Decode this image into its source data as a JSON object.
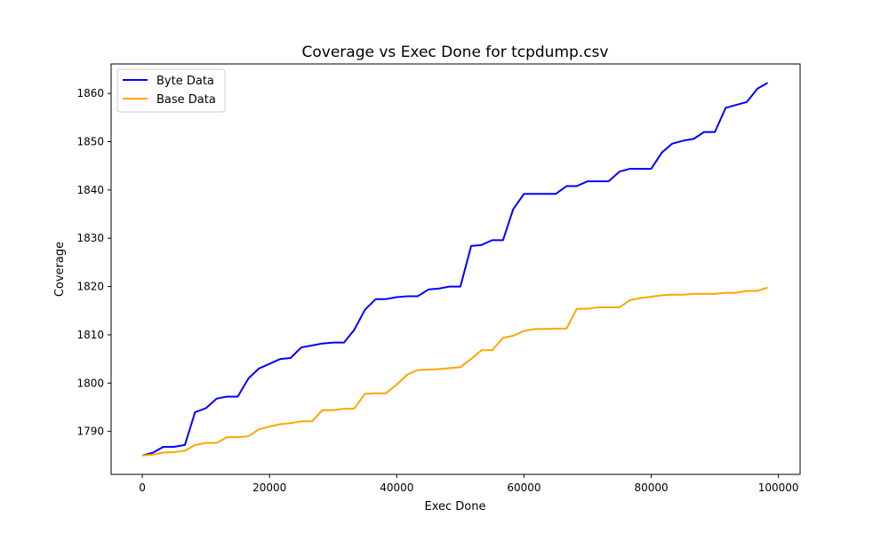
{
  "chart_data": {
    "type": "line",
    "title": "Coverage vs Exec Done for tcpdump.csv",
    "xlabel": "Exec Done",
    "ylabel": "Coverage",
    "xlim": [
      -4900,
      103400
    ],
    "ylim": [
      1781.1,
      1866.1
    ],
    "xticks": [
      0,
      20000,
      40000,
      60000,
      80000,
      100000
    ],
    "yticks": [
      1790,
      1800,
      1810,
      1820,
      1830,
      1840,
      1850,
      1860
    ],
    "grid": false,
    "legend_position": "top-left",
    "series": [
      {
        "name": "Byte Data",
        "color": "#0000ff",
        "x": [
          0,
          1700,
          3300,
          5000,
          6700,
          8300,
          10000,
          11700,
          13300,
          15000,
          16700,
          18300,
          20000,
          21700,
          23300,
          25000,
          26700,
          28300,
          30000,
          31700,
          33300,
          35000,
          36700,
          38300,
          40000,
          41700,
          43300,
          45000,
          46700,
          48300,
          50000,
          51700,
          53300,
          55000,
          56700,
          58300,
          60000,
          61700,
          63300,
          65000,
          66700,
          68300,
          70000,
          71700,
          73300,
          75000,
          76700,
          78300,
          80000,
          81700,
          83300,
          85000,
          86700,
          88300,
          90000,
          91700,
          93300,
          95000,
          96700,
          98300
        ],
        "y": [
          1785,
          1785.6,
          1786.8,
          1786.8,
          1787.2,
          1794,
          1794.8,
          1796.8,
          1797.2,
          1797.2,
          1801,
          1803,
          1804,
          1805,
          1805.2,
          1807.4,
          1807.8,
          1808.2,
          1808.4,
          1808.4,
          1811,
          1815.2,
          1817.4,
          1817.4,
          1817.8,
          1818,
          1818,
          1819.4,
          1819.6,
          1820,
          1820,
          1828.4,
          1828.6,
          1829.6,
          1829.6,
          1836,
          1839.2,
          1839.2,
          1839.2,
          1839.2,
          1840.8,
          1840.8,
          1841.8,
          1841.8,
          1841.8,
          1843.8,
          1844.4,
          1844.4,
          1844.4,
          1847.8,
          1849.6,
          1850.2,
          1850.6,
          1852,
          1852,
          1857,
          1857.6,
          1858.2,
          1861,
          1862.2
        ]
      },
      {
        "name": "Base Data",
        "color": "#ffa500",
        "x": [
          0,
          1700,
          3300,
          5000,
          6700,
          8300,
          10000,
          11700,
          13300,
          15000,
          16700,
          18300,
          20000,
          21700,
          23300,
          25000,
          26700,
          28300,
          30000,
          31700,
          33300,
          35000,
          36700,
          38300,
          40000,
          41700,
          43300,
          45000,
          46700,
          48300,
          50000,
          51700,
          53300,
          55000,
          56700,
          58300,
          60000,
          61700,
          63300,
          65000,
          66700,
          68300,
          70000,
          71700,
          73300,
          75000,
          76700,
          78300,
          80000,
          81700,
          83300,
          85000,
          86700,
          88300,
          90000,
          91700,
          93300,
          95000,
          96700,
          98300
        ],
        "y": [
          1785,
          1785.2,
          1785.6,
          1785.7,
          1786,
          1787.2,
          1787.6,
          1787.6,
          1788.8,
          1788.8,
          1789,
          1790.4,
          1791,
          1791.5,
          1791.7,
          1792.1,
          1792.1,
          1794.4,
          1794.4,
          1794.7,
          1794.7,
          1797.8,
          1797.9,
          1797.9,
          1799.7,
          1801.8,
          1802.7,
          1802.8,
          1802.9,
          1803.1,
          1803.3,
          1805,
          1806.8,
          1806.8,
          1809.4,
          1809.8,
          1810.8,
          1811.2,
          1811.2,
          1811.3,
          1811.3,
          1815.4,
          1815.4,
          1815.7,
          1815.7,
          1815.7,
          1817.2,
          1817.6,
          1817.9,
          1818.2,
          1818.3,
          1818.3,
          1818.5,
          1818.5,
          1818.5,
          1818.7,
          1818.7,
          1819.1,
          1819.1,
          1819.8
        ]
      }
    ]
  }
}
